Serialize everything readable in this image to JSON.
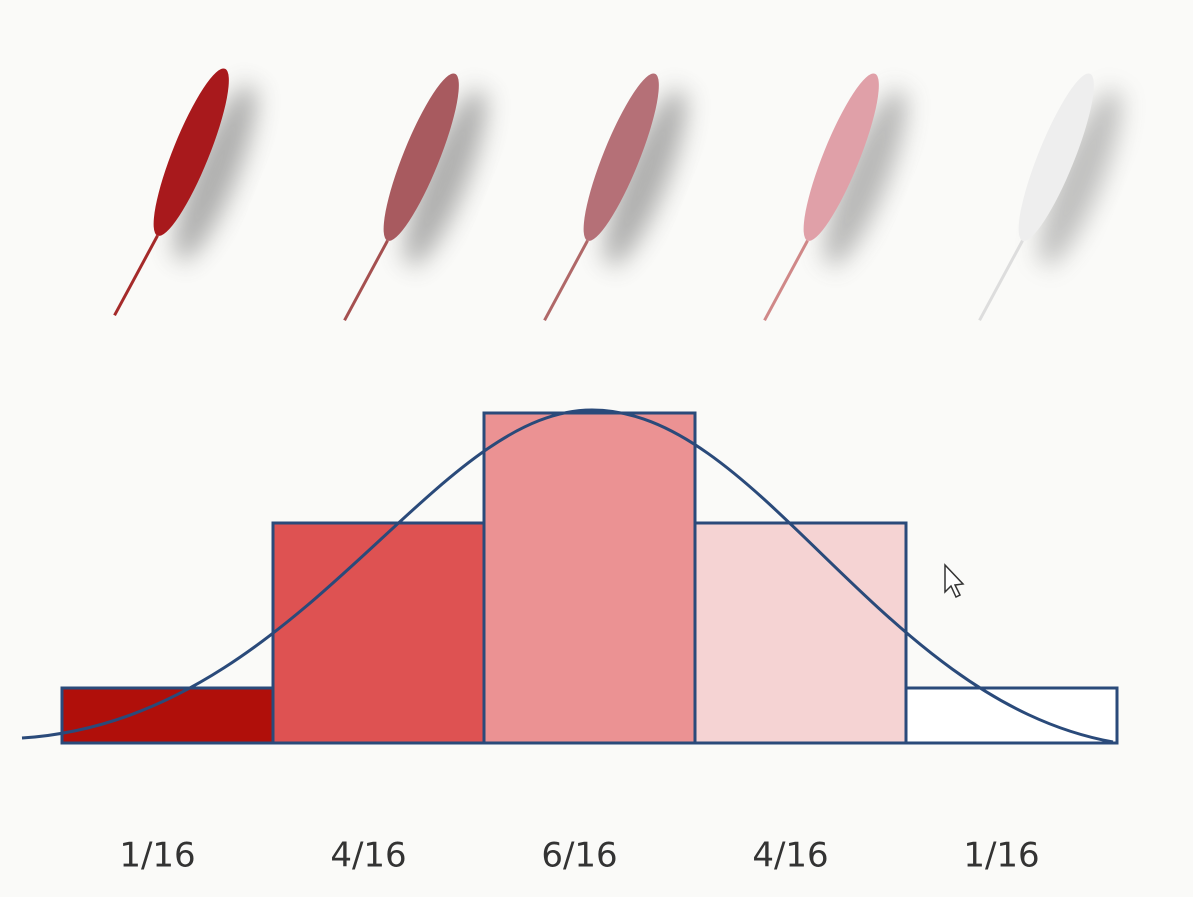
{
  "chart_data": {
    "type": "bar",
    "values": [
      0.0625,
      0.25,
      0.375,
      0.25,
      0.0625
    ],
    "value_labels": [
      "1/16",
      "4/16",
      "6/16",
      "4/16",
      "1/16"
    ],
    "colors": [
      "#b00f0a",
      "#de5252",
      "#eb9293",
      "#f5d3d3",
      "#ffffff"
    ],
    "edge_color": "#2a4a7a"
  }
}
